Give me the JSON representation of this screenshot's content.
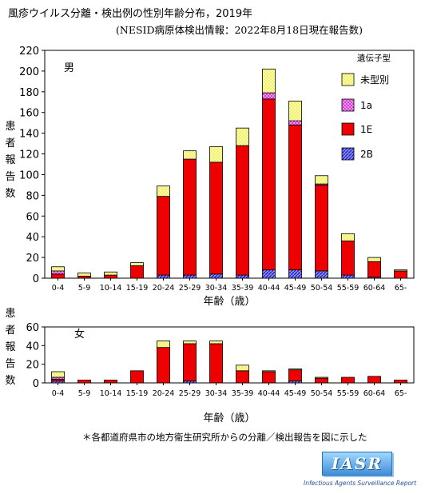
{
  "title": "風疹ウイルス分離・検出例の性別年齢分布，2019年",
  "subtitle": "(NESID病原体検出情報：2022年8月18日現在報告数)",
  "note": "＊各都道府県市の地方衛生研究所からの分離／検出報告を図に示した",
  "logo": {
    "text": "IASR",
    "subtext": "Infectious Agents Surveillance Report"
  },
  "colors": {
    "unknown": "#ffff99",
    "1a": "#ff66ff",
    "1E": "#ee0000",
    "2B": "#2222cc"
  },
  "chart_data": [
    {
      "type": "bar",
      "stacked": true,
      "panel_label": "男",
      "ylabel": "患者報告数",
      "xlabel": "年齢（歳）",
      "ylim": [
        0,
        220
      ],
      "yticks": [
        0,
        20,
        40,
        60,
        80,
        100,
        120,
        140,
        160,
        180,
        200,
        220
      ],
      "legend_title": "遺伝子型",
      "legend_position": "top-right",
      "categories": [
        "0-4",
        "5-9",
        "10-14",
        "15-19",
        "20-24",
        "25-29",
        "30-34",
        "35-39",
        "40-44",
        "45-49",
        "50-54",
        "55-59",
        "60-64",
        "65-"
      ],
      "series": [
        {
          "name": "2B",
          "values": [
            0,
            0,
            0,
            0,
            3,
            3,
            4,
            3,
            8,
            8,
            7,
            3,
            1,
            0
          ]
        },
        {
          "name": "1E",
          "values": [
            4,
            2,
            3,
            12,
            76,
            112,
            108,
            125,
            165,
            140,
            83,
            33,
            15,
            7
          ]
        },
        {
          "name": "1a",
          "values": [
            3,
            0,
            0,
            0,
            0,
            0,
            0,
            0,
            6,
            4,
            1,
            0,
            0,
            0
          ]
        },
        {
          "name": "未型別",
          "values": [
            4,
            3,
            3,
            3,
            10,
            8,
            15,
            17,
            23,
            19,
            8,
            7,
            4,
            1
          ]
        }
      ]
    },
    {
      "type": "bar",
      "stacked": true,
      "panel_label": "女",
      "ylabel": "患者報告数",
      "xlabel": "年齢（歳）",
      "ylim": [
        0,
        60
      ],
      "yticks": [
        0,
        20,
        40,
        60
      ],
      "categories": [
        "0-4",
        "5-9",
        "10-14",
        "15-19",
        "20-24",
        "25-29",
        "30-34",
        "35-39",
        "40-44",
        "45-49",
        "50-54",
        "55-59",
        "60-64",
        "65-"
      ],
      "series": [
        {
          "name": "2B",
          "values": [
            2,
            0,
            0,
            0,
            0,
            2,
            0,
            0,
            0,
            2,
            0,
            0,
            0,
            0
          ]
        },
        {
          "name": "1E",
          "values": [
            2,
            3,
            3,
            13,
            38,
            40,
            42,
            13,
            12,
            12,
            5,
            6,
            7,
            3
          ]
        },
        {
          "name": "1a",
          "values": [
            2,
            0,
            0,
            0,
            0,
            0,
            0,
            0,
            0,
            0,
            0,
            0,
            0,
            0
          ]
        },
        {
          "name": "未型別",
          "values": [
            6,
            0,
            0,
            0,
            7,
            3,
            3,
            6,
            1,
            1,
            1,
            0,
            0,
            0
          ]
        }
      ]
    }
  ]
}
